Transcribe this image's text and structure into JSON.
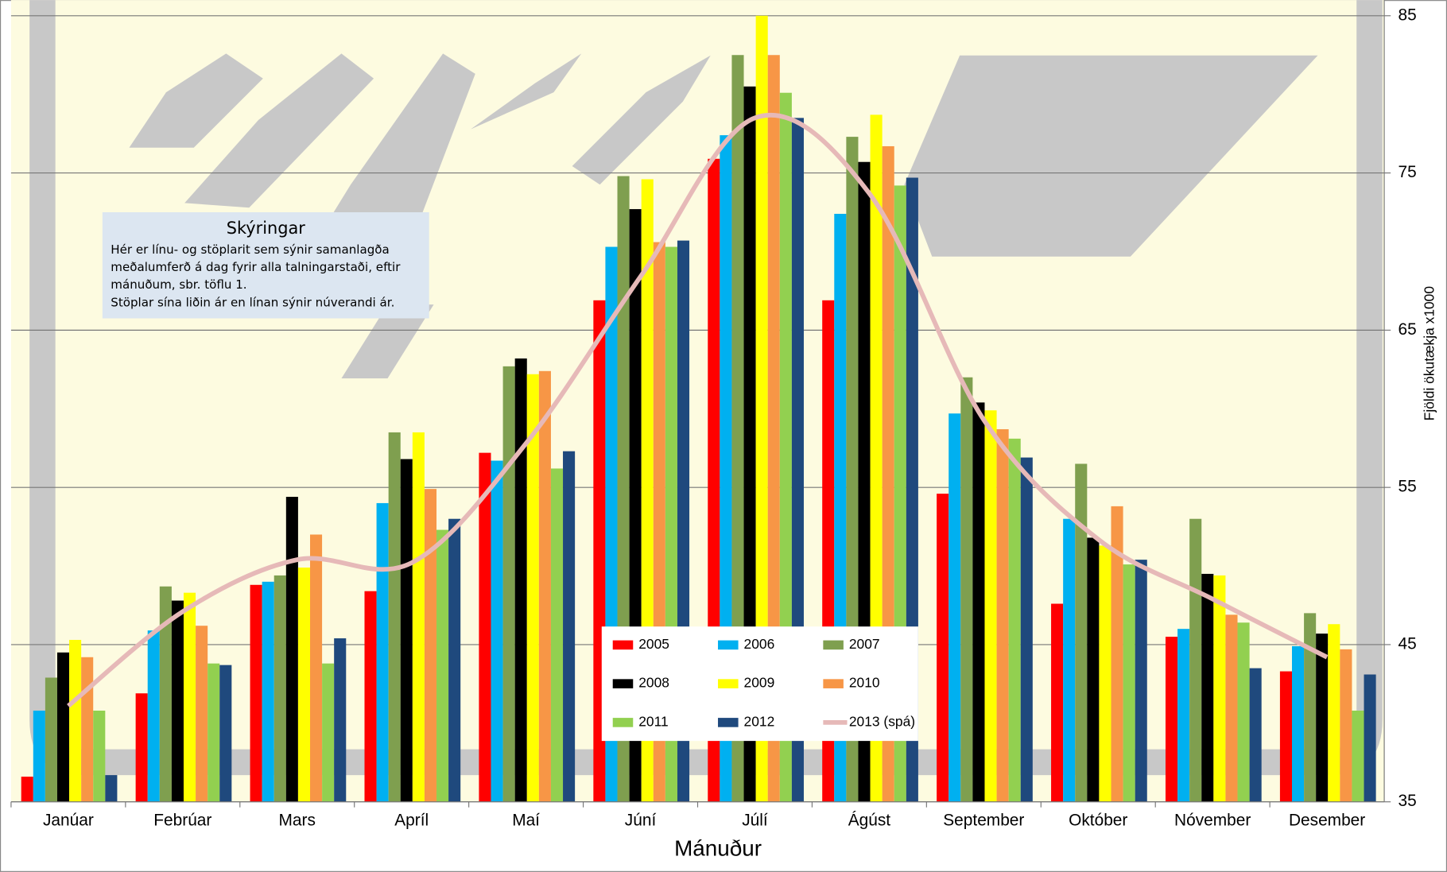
{
  "chart_data": {
    "type": "bar_line",
    "x_label": "Mánuður",
    "y_label": "Fjöldi ökutækja x1000",
    "categories": [
      "Janúar",
      "Febrúar",
      "Mars",
      "Apríl",
      "Maí",
      "Júní",
      "Júlí",
      "Ágúst",
      "September",
      "Október",
      "Nóvember",
      "Desember"
    ],
    "series": [
      {
        "name": "2005",
        "color": "#ff0000",
        "values": [
          36.6,
          41.9,
          48.8,
          48.4,
          57.2,
          66.9,
          75.9,
          66.9,
          54.6,
          47.6,
          45.5,
          43.3
        ]
      },
      {
        "name": "2006",
        "color": "#00b0f0",
        "values": [
          40.8,
          45.9,
          49.0,
          54.0,
          56.7,
          70.3,
          77.4,
          72.4,
          59.7,
          53.0,
          46.0,
          44.9
        ]
      },
      {
        "name": "2007",
        "color": "#7f9f4f",
        "values": [
          42.9,
          48.7,
          49.4,
          58.5,
          62.7,
          74.8,
          82.5,
          77.3,
          62.0,
          56.5,
          53.0,
          47.0
        ]
      },
      {
        "name": "2008",
        "color": "#000000",
        "values": [
          44.5,
          47.8,
          54.4,
          56.8,
          63.2,
          72.7,
          80.5,
          75.7,
          60.4,
          51.8,
          49.5,
          45.7
        ]
      },
      {
        "name": "2009",
        "color": "#ffff00",
        "values": [
          45.3,
          48.3,
          49.9,
          58.5,
          62.2,
          74.6,
          85.0,
          78.7,
          59.9,
          51.3,
          49.4,
          46.3
        ]
      },
      {
        "name": "2010",
        "color": "#f79646",
        "values": [
          44.2,
          46.2,
          52.0,
          54.9,
          62.4,
          70.6,
          82.5,
          76.7,
          58.7,
          53.8,
          46.9,
          44.7
        ]
      },
      {
        "name": "2011",
        "color": "#92d050",
        "values": [
          40.8,
          43.8,
          43.8,
          52.3,
          56.2,
          70.3,
          80.1,
          74.2,
          58.1,
          50.1,
          46.4,
          40.8
        ]
      },
      {
        "name": "2012",
        "color": "#1f497d",
        "values": [
          36.7,
          43.7,
          45.4,
          53.0,
          57.3,
          70.7,
          78.5,
          74.7,
          56.9,
          50.4,
          43.5,
          43.1
        ]
      },
      {
        "name": "2013 (spá)",
        "type": "line",
        "color": "#e6b9b8",
        "values": [
          41.1,
          47.1,
          50.4,
          50.2,
          57.8,
          68.4,
          78.5,
          73.7,
          59.3,
          51.7,
          47.9,
          44.2
        ]
      }
    ],
    "ylim": [
      35,
      85
    ],
    "yticks": [
      35,
      45,
      55,
      65,
      75,
      85
    ],
    "grid": true,
    "annotation": {
      "title": "Skýringar",
      "lines": [
        "Hér er línu- og stöplarit sem sýnir samanlagða",
        "meðalumferð  á dag  fyrir alla talningarstaði, eftir",
        "mánuðum, sbr. töflu 1.",
        "Stöplar sína liðin ár en línan sýnir núverandi ár."
      ]
    }
  }
}
